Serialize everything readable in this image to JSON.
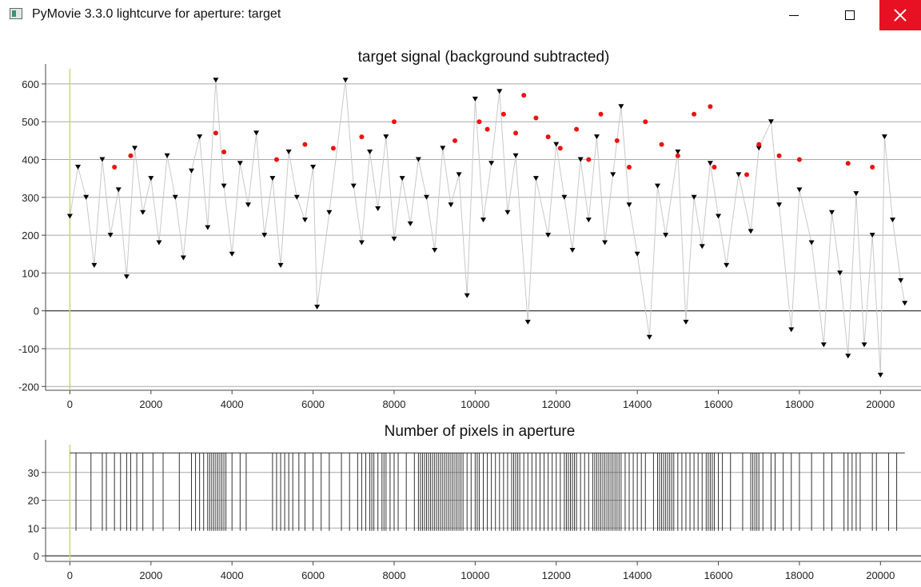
{
  "window": {
    "title": "PyMovie 3.3.0 lightcurve for aperture: target",
    "icons": {
      "app": "pymovie-app-icon",
      "minimize": "minimize-icon",
      "maximize": "maximize-icon",
      "close": "close-icon"
    },
    "close_button_color": "#e81123"
  },
  "chart_data": [
    {
      "type": "scatter",
      "title": "target signal (background subtracted)",
      "xlabel": "",
      "ylabel": "",
      "xlim": [
        -600,
        21000
      ],
      "ylim": [
        -210,
        640
      ],
      "x_ticks": [
        "0",
        "2000",
        "4000",
        "6000",
        "8000",
        "10000",
        "12000",
        "14000",
        "16000",
        "18000",
        "20000"
      ],
      "y_ticks": [
        "-200",
        "-100",
        "0",
        "100",
        "200",
        "300",
        "400",
        "500",
        "600"
      ],
      "grid": true,
      "marker_colors": {
        "normal": "#000000",
        "flagged": "#ee1111",
        "connector": "#c8c8c8",
        "cursor_line": "#c8d67a"
      },
      "cursor_x": 0,
      "summary": {
        "x_range": [
          0,
          20600
        ],
        "typical_y_range": [
          100,
          450
        ],
        "max_y": 610,
        "min_y": -170,
        "note_flagged": "red points mostly between x 1000 and 18000 with y 350-580"
      },
      "series": [
        {
          "name": "",
          "points": [
            [
              0,
              250
            ],
            [
              200,
              380
            ],
            [
              400,
              300
            ],
            [
              600,
              120
            ],
            [
              800,
              400
            ],
            [
              1000,
              200
            ],
            [
              1200,
              320
            ],
            [
              1400,
              90
            ],
            [
              1600,
              430
            ],
            [
              1800,
              260
            ],
            [
              2000,
              350
            ],
            [
              2200,
              180
            ],
            [
              2400,
              410
            ],
            [
              2600,
              300
            ],
            [
              2800,
              140
            ],
            [
              3000,
              370
            ],
            [
              3200,
              460
            ],
            [
              3400,
              220
            ],
            [
              3600,
              610
            ],
            [
              3800,
              330
            ],
            [
              4000,
              150
            ],
            [
              4200,
              390
            ],
            [
              4400,
              280
            ],
            [
              4600,
              470
            ],
            [
              4800,
              200
            ],
            [
              5000,
              350
            ],
            [
              5200,
              120
            ],
            [
              5400,
              420
            ],
            [
              5600,
              300
            ],
            [
              5800,
              240
            ],
            [
              6000,
              380
            ],
            [
              6100,
              10
            ],
            [
              6400,
              260
            ],
            [
              6800,
              610
            ],
            [
              7000,
              330
            ],
            [
              7200,
              180
            ],
            [
              7400,
              420
            ],
            [
              7600,
              270
            ],
            [
              7800,
              460
            ],
            [
              8000,
              190
            ],
            [
              8200,
              350
            ],
            [
              8400,
              230
            ],
            [
              8600,
              400
            ],
            [
              8800,
              300
            ],
            [
              9000,
              160
            ],
            [
              9200,
              430
            ],
            [
              9400,
              280
            ],
            [
              9600,
              360
            ],
            [
              9800,
              40
            ],
            [
              10000,
              560
            ],
            [
              10200,
              240
            ],
            [
              10400,
              390
            ],
            [
              10600,
              580
            ],
            [
              10800,
              260
            ],
            [
              11000,
              410
            ],
            [
              11300,
              -30
            ],
            [
              11500,
              350
            ],
            [
              11800,
              200
            ],
            [
              12000,
              440
            ],
            [
              12200,
              300
            ],
            [
              12400,
              160
            ],
            [
              12600,
              400
            ],
            [
              12800,
              240
            ],
            [
              13000,
              460
            ],
            [
              13200,
              180
            ],
            [
              13400,
              360
            ],
            [
              13600,
              540
            ],
            [
              13800,
              280
            ],
            [
              14000,
              150
            ],
            [
              14300,
              -70
            ],
            [
              14500,
              330
            ],
            [
              14700,
              200
            ],
            [
              15000,
              420
            ],
            [
              15200,
              -30
            ],
            [
              15400,
              300
            ],
            [
              15600,
              170
            ],
            [
              15800,
              390
            ],
            [
              16000,
              250
            ],
            [
              16200,
              120
            ],
            [
              16500,
              360
            ],
            [
              16800,
              210
            ],
            [
              17000,
              430
            ],
            [
              17300,
              500
            ],
            [
              17500,
              280
            ],
            [
              17800,
              -50
            ],
            [
              18000,
              320
            ],
            [
              18300,
              180
            ],
            [
              18600,
              -90
            ],
            [
              18800,
              260
            ],
            [
              19000,
              100
            ],
            [
              19200,
              -120
            ],
            [
              19400,
              310
            ],
            [
              19600,
              -90
            ],
            [
              19800,
              200
            ],
            [
              20000,
              -170
            ],
            [
              20100,
              460
            ],
            [
              20300,
              240
            ],
            [
              20500,
              80
            ],
            [
              20600,
              20
            ]
          ]
        },
        {
          "name": "",
          "flagged": true,
          "points": [
            [
              1100,
              380
            ],
            [
              1500,
              410
            ],
            [
              3600,
              470
            ],
            [
              3800,
              420
            ],
            [
              5100,
              400
            ],
            [
              5800,
              440
            ],
            [
              6500,
              430
            ],
            [
              7200,
              460
            ],
            [
              8000,
              500
            ],
            [
              9500,
              450
            ],
            [
              10100,
              500
            ],
            [
              10300,
              480
            ],
            [
              10700,
              520
            ],
            [
              11000,
              470
            ],
            [
              11200,
              570
            ],
            [
              11500,
              510
            ],
            [
              11800,
              460
            ],
            [
              12100,
              430
            ],
            [
              12500,
              480
            ],
            [
              12800,
              400
            ],
            [
              13100,
              520
            ],
            [
              13500,
              450
            ],
            [
              13800,
              380
            ],
            [
              14200,
              500
            ],
            [
              14600,
              440
            ],
            [
              15000,
              410
            ],
            [
              15400,
              520
            ],
            [
              15800,
              540
            ],
            [
              15900,
              380
            ],
            [
              16700,
              360
            ],
            [
              17000,
              440
            ],
            [
              17500,
              410
            ],
            [
              18000,
              400
            ],
            [
              19200,
              390
            ],
            [
              19800,
              380
            ]
          ]
        }
      ]
    },
    {
      "type": "line",
      "title": "Number of pixels in aperture",
      "xlabel": "",
      "ylabel": "",
      "xlim": [
        -600,
        21000
      ],
      "ylim": [
        -2,
        40
      ],
      "x_ticks": [
        "0",
        "2000",
        "4000",
        "6000",
        "8000",
        "10000",
        "12000",
        "14000",
        "16000",
        "18000",
        "20000"
      ],
      "y_ticks": [
        "0",
        "10",
        "20",
        "30"
      ],
      "grid": true,
      "levels": [
        9,
        37
      ],
      "cursor_x": 0,
      "x_range": [
        0,
        20600
      ],
      "transition_x": [
        150,
        520,
        800,
        900,
        1100,
        1250,
        1400,
        1500,
        1650,
        1800,
        2050,
        2300,
        2700,
        3000,
        3100,
        3200,
        3300,
        3400,
        3450,
        3500,
        3550,
        3600,
        3650,
        3700,
        3750,
        3800,
        3850,
        4000,
        4200,
        4350,
        5000,
        5100,
        5200,
        5300,
        5400,
        5500,
        5650,
        5800,
        6000,
        6200,
        6400,
        6700,
        6900,
        7100,
        7200,
        7300,
        7400,
        7450,
        7500,
        7600,
        7700,
        7750,
        7800,
        7900,
        8000,
        8100,
        8300,
        8500,
        8600,
        8650,
        8700,
        8750,
        8800,
        8850,
        8900,
        8950,
        9000,
        9050,
        9100,
        9150,
        9200,
        9250,
        9300,
        9350,
        9400,
        9450,
        9500,
        9550,
        9600,
        9650,
        9700,
        9800,
        9900,
        10000,
        10050,
        10100,
        10200,
        10300,
        10400,
        10500,
        10600,
        10700,
        10800,
        10900,
        10950,
        11000,
        11050,
        11100,
        11200,
        11300,
        11400,
        11500,
        11600,
        11700,
        11800,
        11900,
        12000,
        12100,
        12200,
        12250,
        12300,
        12350,
        12400,
        12450,
        12500,
        12600,
        12700,
        12800,
        12900,
        12950,
        13000,
        13050,
        13100,
        13150,
        13200,
        13250,
        13300,
        13350,
        13400,
        13450,
        13500,
        13550,
        13600,
        13700,
        13800,
        13900,
        14000,
        14100,
        14200,
        14400,
        14500,
        14550,
        14600,
        14650,
        14700,
        14750,
        14800,
        14850,
        14900,
        15000,
        15100,
        15200,
        15300,
        15400,
        15500,
        15600,
        15700,
        15750,
        15800,
        15850,
        15900,
        16000,
        16100,
        16300,
        16600,
        16800,
        16850,
        16900,
        16950,
        17000,
        17100,
        17300,
        17400,
        17600,
        17800,
        18000,
        18300,
        18600,
        18800,
        19100,
        19200,
        19300,
        19400,
        19500,
        19800,
        19900,
        20200,
        20400
      ]
    }
  ]
}
